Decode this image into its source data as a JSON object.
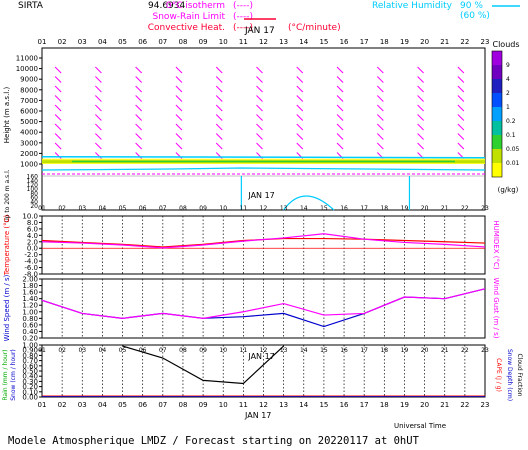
{
  "header": {
    "site": "SIRTA",
    "coords": "94.6934",
    "legend_left": [
      {
        "label": "0°C isotherm",
        "sym": "(----)",
        "color": "#ff00ff"
      },
      {
        "label": "Snow-Rain Limit",
        "sym": "(----)",
        "color": "#ff00ff"
      },
      {
        "label": "Convective Heat.",
        "sym": "(----)",
        "unit": "(°C/minute)",
        "color": "#ff0033"
      }
    ],
    "legend_right": [
      {
        "label": "Relative Humidity",
        "pct": "90 %",
        "color": "#00ccff"
      },
      {
        "label": "",
        "pct": "(60 %)",
        "color": "#00ccff"
      }
    ],
    "date": "JAN 17"
  },
  "hours": [
    "01",
    "02",
    "03",
    "04",
    "05",
    "06",
    "07",
    "08",
    "09",
    "10",
    "11",
    "12",
    "13",
    "14",
    "15",
    "16",
    "17",
    "18",
    "19",
    "20",
    "21",
    "22",
    "23"
  ],
  "footer": {
    "universal_time": "Universal Time",
    "date": "JAN 17",
    "caption": "Modele Atmospherique LMDZ / Forecast starting on 20220117 at 0hUT"
  },
  "chart_data": [
    {
      "type": "heatmap",
      "name": "upper-air",
      "ylabel": "Height (m a.s.l.)",
      "ylabel2": "Up to 200 m a.s.l.",
      "yticks_high": [
        1000,
        2000,
        3000,
        4000,
        5000,
        6000,
        7000,
        8000,
        9000,
        10000,
        11000
      ],
      "yticks_low": [
        "20",
        "40",
        "60",
        "80",
        "100",
        "120",
        "140",
        "160"
      ],
      "colorbar": {
        "title": "Clouds",
        "unit": "(g/kg)",
        "levels": [
          "9",
          "4",
          "2",
          "1",
          "0.2",
          "0.1",
          "0.05",
          "0.01"
        ],
        "colors": [
          "#a000e0",
          "#7000c0",
          "#2020c0",
          "#0050ff",
          "#00a0ff",
          "#00c0a0",
          "#30d030",
          "#c0e000",
          "#ffff00"
        ]
      },
      "cloud_layer": {
        "base_m": 1000,
        "top_m": 1500
      }
    },
    {
      "type": "line",
      "name": "temperature",
      "ylabel": "Temperature (°C)",
      "ylabel_right": "HUMIDEX (°C)",
      "yticks": [
        "10.0",
        "8.0",
        "6.0",
        "4.0",
        "2.0",
        "0.0",
        "-2.0",
        "-4.0",
        "-6.0",
        "-8.0"
      ],
      "ylim": [
        -8,
        10
      ],
      "x": [
        1,
        3,
        5,
        7,
        9,
        11,
        13,
        15,
        17,
        19,
        21,
        23
      ],
      "series": [
        {
          "values": [
            2.4,
            1.8,
            1.2,
            0.4,
            1.2,
            2.4,
            3.0,
            3.0,
            2.8,
            2.4,
            2.0,
            1.6
          ],
          "color": "#ff0000"
        },
        {
          "values": [
            2.0,
            1.6,
            1.0,
            0.1,
            1.0,
            2.2,
            3.2,
            4.5,
            2.8,
            1.8,
            1.2,
            0.4
          ],
          "color": "#ff00ff"
        }
      ]
    },
    {
      "type": "line",
      "name": "wind",
      "ylabel": "Wind Speed (m / s)",
      "ylabel_right": "Wind Gust (m / s)",
      "yticks": [
        "2.00",
        "1.80",
        "1.60",
        "1.40",
        "1.20",
        "1.00",
        "0.80",
        "0.60",
        "0.40",
        "0.20"
      ],
      "ylim": [
        0.2,
        2.0
      ],
      "x": [
        1,
        3,
        5,
        7,
        9,
        11,
        13,
        15,
        17,
        19,
        21,
        23
      ],
      "series": [
        {
          "values": [
            1.35,
            0.95,
            0.8,
            0.95,
            0.8,
            0.85,
            0.95,
            0.55,
            0.95,
            1.45,
            1.4,
            1.7
          ],
          "color": "#0000cc"
        },
        {
          "values": [
            1.35,
            0.95,
            0.8,
            0.95,
            0.8,
            1.0,
            1.25,
            0.9,
            0.95,
            1.45,
            1.4,
            1.7
          ],
          "color": "#ff00ff"
        }
      ]
    },
    {
      "type": "line",
      "name": "precipitation",
      "ylabel": "Rain (mm / hour)",
      "ylabel2": "Snow (cm / hour)",
      "ylabel_right": "CAPE (J / g)",
      "ylabel_right2": "Snow Depth (cm)",
      "ylabel_right3": "Cloud Fraction",
      "yticks": [
        "1.00",
        "0.90",
        "0.80",
        "0.70",
        "0.60",
        "0.50",
        "0.40",
        "0.30",
        "0.20",
        "0.10",
        "0.00"
      ],
      "ylim": [
        0,
        1
      ],
      "x": [
        5,
        7,
        9,
        11,
        13
      ],
      "series": [
        {
          "values": [
            0.98,
            0.75,
            0.32,
            0.26,
            0.98
          ],
          "color": "#000000"
        }
      ]
    }
  ]
}
